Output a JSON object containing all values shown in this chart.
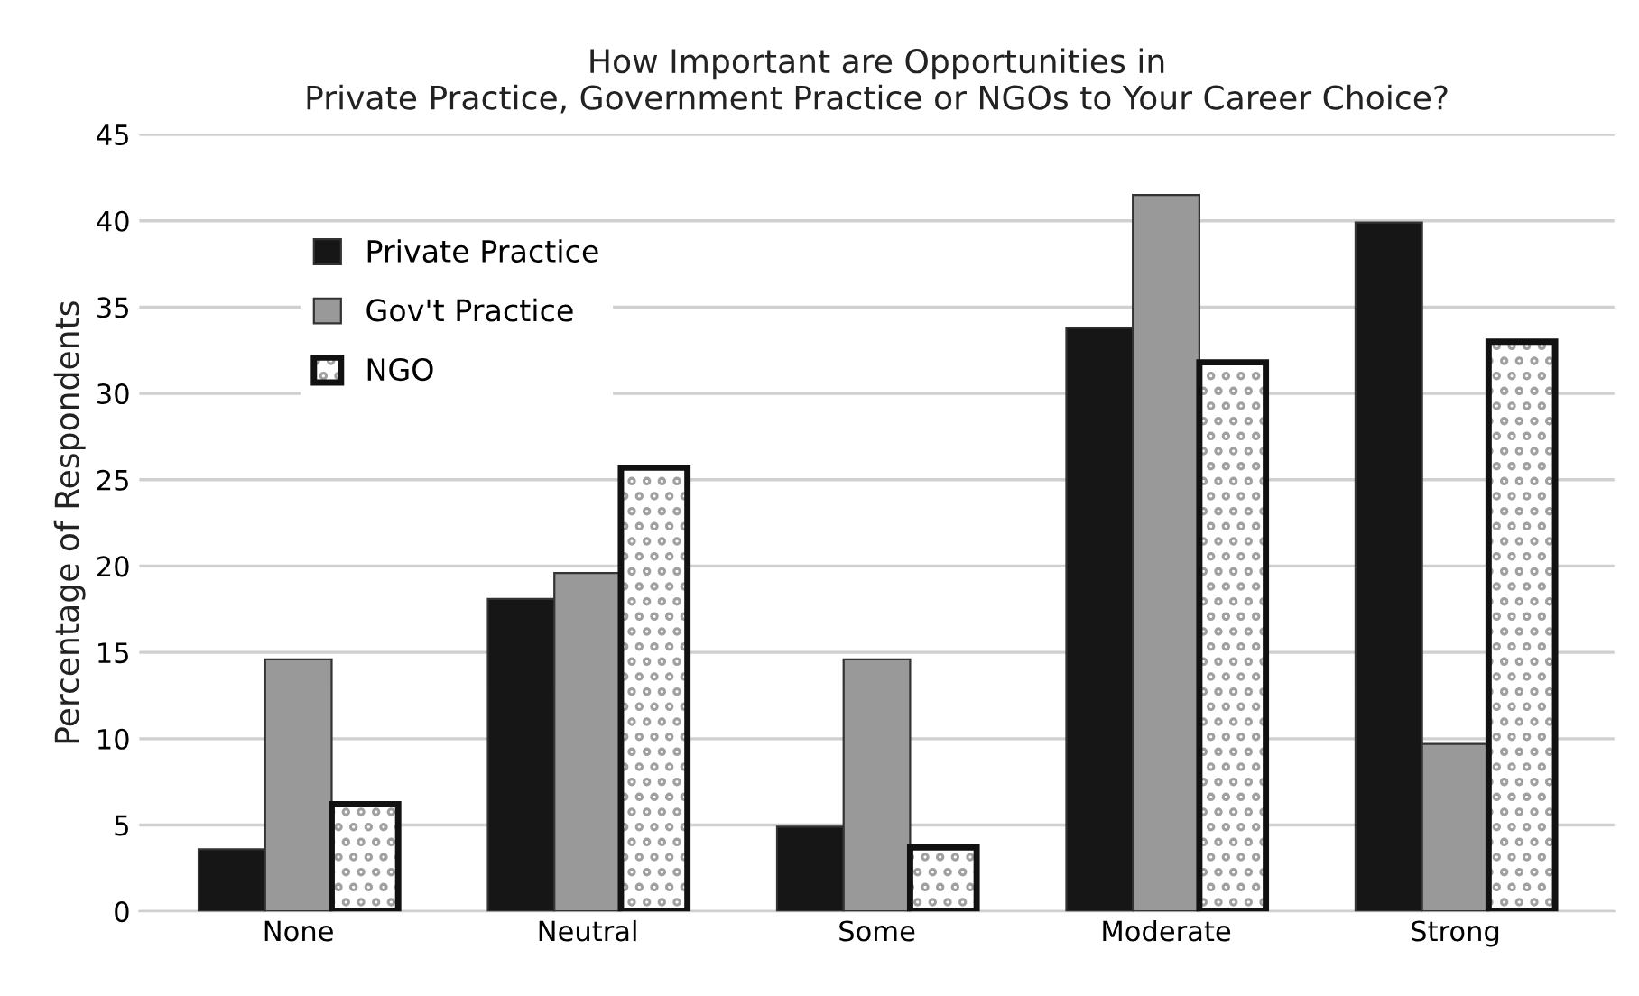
{
  "chart_data": {
    "type": "bar",
    "title": "How Important are Opportunities in\nPrivate Practice, Government Practice or NGOs to Your Career Choice?",
    "ylabel": "Percentage of Respondents",
    "categories": [
      "None",
      "Neutral",
      "Some",
      "Moderate",
      "Strong"
    ],
    "series": [
      {
        "name": "Private Practice",
        "color": "#161616",
        "values": [
          3.6,
          18.1,
          4.9,
          33.8,
          39.9
        ]
      },
      {
        "name": "Gov't Practice",
        "color": "#999999",
        "values": [
          14.6,
          19.6,
          14.6,
          41.5,
          9.7
        ]
      },
      {
        "name": "NGO",
        "color": "#111111",
        "values": [
          6.2,
          25.7,
          3.7,
          31.8,
          33.0
        ]
      }
    ],
    "ylim": [
      0,
      45
    ],
    "yticks": [
      0,
      5,
      10,
      15,
      20,
      25,
      30,
      35,
      40,
      45
    ],
    "grid": "y",
    "legend": "top left"
  }
}
